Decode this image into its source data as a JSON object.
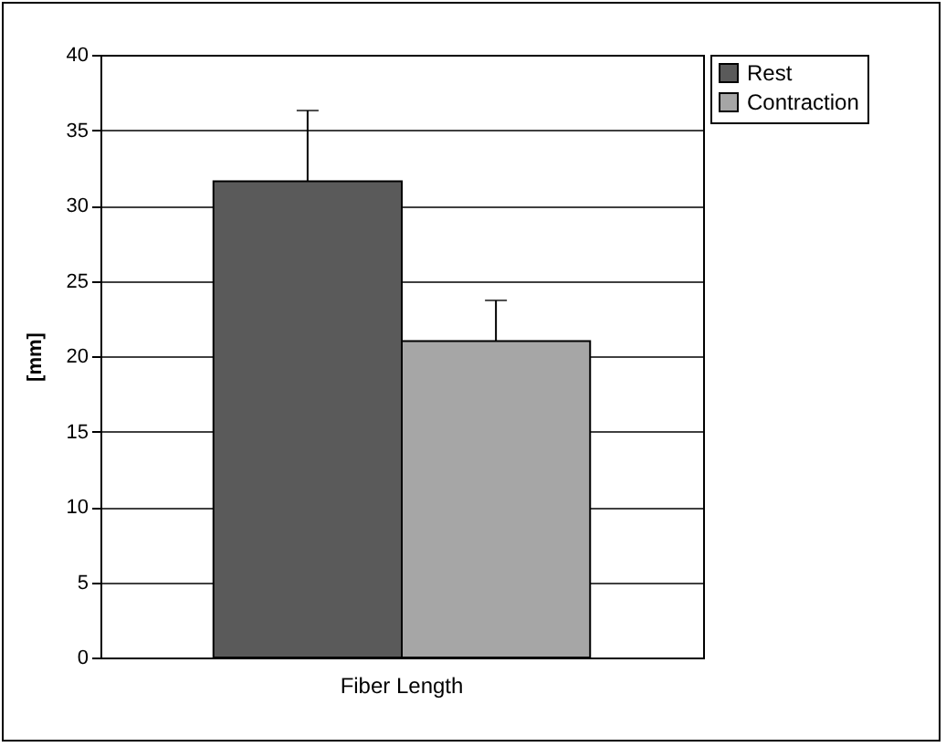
{
  "chart_data": {
    "type": "bar",
    "categories": [
      "Fiber Length"
    ],
    "ylabel": "[mm]",
    "series": [
      {
        "name": "Rest",
        "color": "#5a5a5a",
        "values": [
          31.6
        ],
        "errors": [
          [
            31.6,
            36.3
          ]
        ]
      },
      {
        "name": "Contraction",
        "color": "#a6a6a6",
        "values": [
          21.0
        ],
        "errors": [
          [
            21.0,
            23.7
          ]
        ]
      }
    ],
    "ylim": [
      0,
      40
    ],
    "yticks": [
      0,
      5,
      10,
      15,
      20,
      25,
      30,
      35,
      40
    ],
    "grid": "y",
    "legend": "right"
  }
}
